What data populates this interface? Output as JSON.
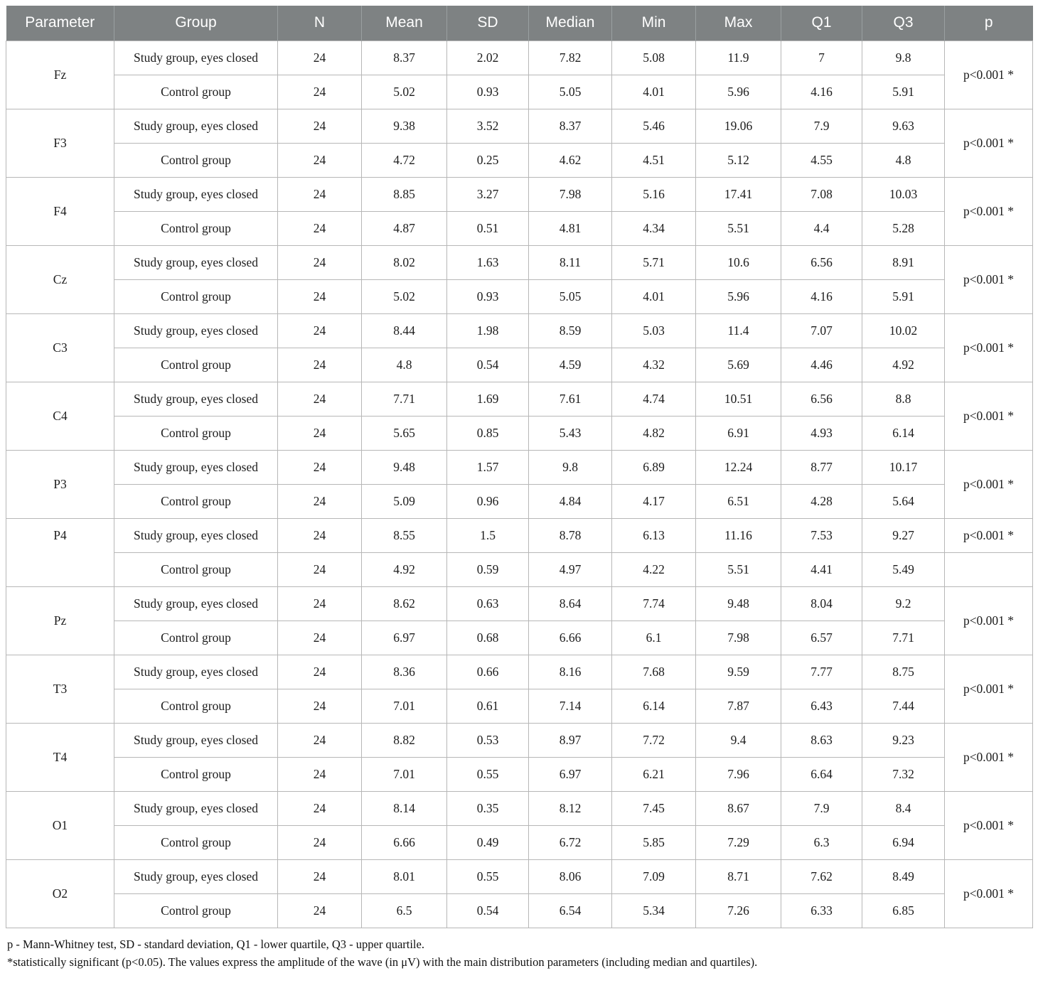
{
  "table": {
    "headers": [
      "Parameter",
      "Group",
      "N",
      "Mean",
      "SD",
      "Median",
      "Min",
      "Max",
      "Q1",
      "Q3",
      "p"
    ],
    "group_labels": {
      "study": "Study group, eyes closed",
      "control": "Control group"
    },
    "rows": [
      {
        "parameter": "Fz",
        "study": {
          "n": "24",
          "mean": "8.37",
          "sd": "2.02",
          "median": "7.82",
          "min": "5.08",
          "max": "11.9",
          "q1": "7",
          "q3": "9.8"
        },
        "control": {
          "n": "24",
          "mean": "5.02",
          "sd": "0.93",
          "median": "5.05",
          "min": "4.01",
          "max": "5.96",
          "q1": "4.16",
          "q3": "5.91"
        },
        "p": "p<0.001 *",
        "p_rowspan": 2
      },
      {
        "parameter": "F3",
        "study": {
          "n": "24",
          "mean": "9.38",
          "sd": "3.52",
          "median": "8.37",
          "min": "5.46",
          "max": "19.06",
          "q1": "7.9",
          "q3": "9.63"
        },
        "control": {
          "n": "24",
          "mean": "4.72",
          "sd": "0.25",
          "median": "4.62",
          "min": "4.51",
          "max": "5.12",
          "q1": "4.55",
          "q3": "4.8"
        },
        "p": "p<0.001 *",
        "p_rowspan": 2
      },
      {
        "parameter": "F4",
        "study": {
          "n": "24",
          "mean": "8.85",
          "sd": "3.27",
          "median": "7.98",
          "min": "5.16",
          "max": "17.41",
          "q1": "7.08",
          "q3": "10.03"
        },
        "control": {
          "n": "24",
          "mean": "4.87",
          "sd": "0.51",
          "median": "4.81",
          "min": "4.34",
          "max": "5.51",
          "q1": "4.4",
          "q3": "5.28"
        },
        "p": "p<0.001 *",
        "p_rowspan": 2
      },
      {
        "parameter": "Cz",
        "study": {
          "n": "24",
          "mean": "8.02",
          "sd": "1.63",
          "median": "8.11",
          "min": "5.71",
          "max": "10.6",
          "q1": "6.56",
          "q3": "8.91"
        },
        "control": {
          "n": "24",
          "mean": "5.02",
          "sd": "0.93",
          "median": "5.05",
          "min": "4.01",
          "max": "5.96",
          "q1": "4.16",
          "q3": "5.91"
        },
        "p": "p<0.001 *",
        "p_rowspan": 2
      },
      {
        "parameter": "C3",
        "study": {
          "n": "24",
          "mean": "8.44",
          "sd": "1.98",
          "median": "8.59",
          "min": "5.03",
          "max": "11.4",
          "q1": "7.07",
          "q3": "10.02"
        },
        "control": {
          "n": "24",
          "mean": "4.8",
          "sd": "0.54",
          "median": "4.59",
          "min": "4.32",
          "max": "5.69",
          "q1": "4.46",
          "q3": "4.92"
        },
        "p": "p<0.001 *",
        "p_rowspan": 2
      },
      {
        "parameter": "C4",
        "study": {
          "n": "24",
          "mean": "7.71",
          "sd": "1.69",
          "median": "7.61",
          "min": "4.74",
          "max": "10.51",
          "q1": "6.56",
          "q3": "8.8"
        },
        "control": {
          "n": "24",
          "mean": "5.65",
          "sd": "0.85",
          "median": "5.43",
          "min": "4.82",
          "max": "6.91",
          "q1": "4.93",
          "q3": "6.14"
        },
        "p": "p<0.001 *",
        "p_rowspan": 2
      },
      {
        "parameter": "P3",
        "study": {
          "n": "24",
          "mean": "9.48",
          "sd": "1.57",
          "median": "9.8",
          "min": "6.89",
          "max": "12.24",
          "q1": "8.77",
          "q3": "10.17"
        },
        "control": {
          "n": "24",
          "mean": "5.09",
          "sd": "0.96",
          "median": "4.84",
          "min": "4.17",
          "max": "6.51",
          "q1": "4.28",
          "q3": "5.64"
        },
        "p": "p<0.001 *",
        "p_rowspan": 2
      },
      {
        "parameter": "P4",
        "param_valign": "top",
        "study": {
          "n": "24",
          "mean": "8.55",
          "sd": "1.5",
          "median": "8.78",
          "min": "6.13",
          "max": "11.16",
          "q1": "7.53",
          "q3": "9.27"
        },
        "control": {
          "n": "24",
          "mean": "4.92",
          "sd": "0.59",
          "median": "4.97",
          "min": "4.22",
          "max": "5.51",
          "q1": "4.41",
          "q3": "5.49"
        },
        "p": "p<0.001 *",
        "p_rowspan": 1
      },
      {
        "parameter": "Pz",
        "study": {
          "n": "24",
          "mean": "8.62",
          "sd": "0.63",
          "median": "8.64",
          "min": "7.74",
          "max": "9.48",
          "q1": "8.04",
          "q3": "9.2"
        },
        "control": {
          "n": "24",
          "mean": "6.97",
          "sd": "0.68",
          "median": "6.66",
          "min": "6.1",
          "max": "7.98",
          "q1": "6.57",
          "q3": "7.71"
        },
        "p": "p<0.001 *",
        "p_rowspan": 2
      },
      {
        "parameter": "T3",
        "study": {
          "n": "24",
          "mean": "8.36",
          "sd": "0.66",
          "median": "8.16",
          "min": "7.68",
          "max": "9.59",
          "q1": "7.77",
          "q3": "8.75"
        },
        "control": {
          "n": "24",
          "mean": "7.01",
          "sd": "0.61",
          "median": "7.14",
          "min": "6.14",
          "max": "7.87",
          "q1": "6.43",
          "q3": "7.44"
        },
        "p": "p<0.001 *",
        "p_rowspan": 2
      },
      {
        "parameter": "T4",
        "study": {
          "n": "24",
          "mean": "8.82",
          "sd": "0.53",
          "median": "8.97",
          "min": "7.72",
          "max": "9.4",
          "q1": "8.63",
          "q3": "9.23"
        },
        "control": {
          "n": "24",
          "mean": "7.01",
          "sd": "0.55",
          "median": "6.97",
          "min": "6.21",
          "max": "7.96",
          "q1": "6.64",
          "q3": "7.32"
        },
        "p": "p<0.001 *",
        "p_rowspan": 2
      },
      {
        "parameter": "O1",
        "study": {
          "n": "24",
          "mean": "8.14",
          "sd": "0.35",
          "median": "8.12",
          "min": "7.45",
          "max": "8.67",
          "q1": "7.9",
          "q3": "8.4"
        },
        "control": {
          "n": "24",
          "mean": "6.66",
          "sd": "0.49",
          "median": "6.72",
          "min": "5.85",
          "max": "7.29",
          "q1": "6.3",
          "q3": "6.94"
        },
        "p": "p<0.001 *",
        "p_rowspan": 2
      },
      {
        "parameter": "O2",
        "study": {
          "n": "24",
          "mean": "8.01",
          "sd": "0.55",
          "median": "8.06",
          "min": "7.09",
          "max": "8.71",
          "q1": "7.62",
          "q3": "8.49"
        },
        "control": {
          "n": "24",
          "mean": "6.5",
          "sd": "0.54",
          "median": "6.54",
          "min": "5.34",
          "max": "7.26",
          "q1": "6.33",
          "q3": "6.85"
        },
        "p": "p<0.001 *",
        "p_rowspan": 2
      }
    ]
  },
  "footnotes": [
    "p - Mann-Whitney test, SD - standard deviation, Q1 - lower quartile, Q3 - upper quartile.",
    "*statistically significant (p<0.05). The values express the amplitude of the wave (in μV) with the main distribution parameters (including median and quartiles)."
  ],
  "colors": {
    "header_bg": "#7e8283",
    "header_text": "#ffffff",
    "border": "#b7b7b7",
    "body_text": "#1c1c1c"
  }
}
